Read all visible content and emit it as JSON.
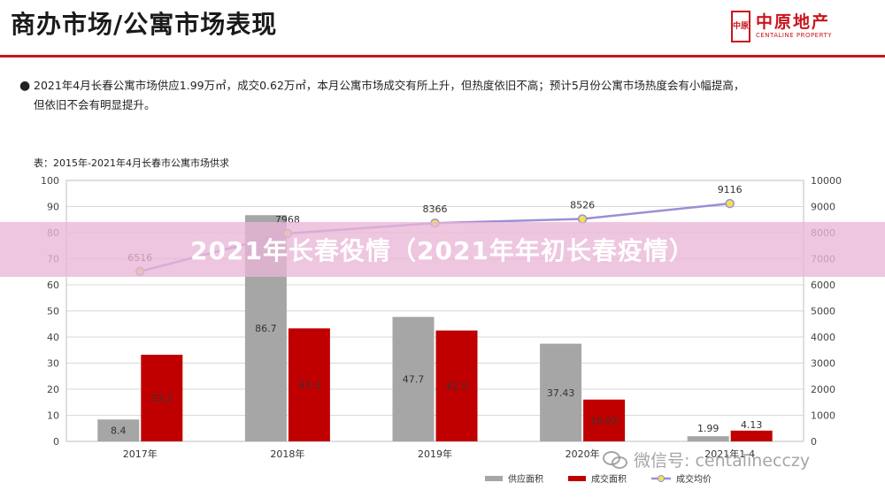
{
  "header": {
    "title": "商办市场/公寓市场表现",
    "logo_seal": "中原",
    "logo_cn": "中原地产",
    "logo_en": "CENTALINE PROPERTY"
  },
  "summary": {
    "line1": "2021年4月长春公寓市场供应1.99万㎡，成交0.62万㎡，本月公寓市场成交有所上升，但热度依旧不高；预计5月份公寓市场热度会有小幅提高，",
    "line2": "但依旧不会有明显提升。"
  },
  "table_caption": "表：2015年-2021年4月长春市公寓市场供求",
  "banner_text": "2021年长春役情（2021年年初长春疫情）",
  "watermark": "微信号: centalinecczy",
  "colors": {
    "supply": "#a6a6a6",
    "deal": "#c00000",
    "price_line": "#9b8fd6",
    "price_marker": "#f2e24f",
    "header_red": "#c9151e"
  },
  "chart_data": {
    "type": "bar",
    "categories": [
      "2017年",
      "2018年",
      "2019年",
      "2020年",
      "2021年1-4"
    ],
    "series": [
      {
        "name": "供应面积",
        "type": "bar",
        "axis": "left",
        "values": [
          8.4,
          86.7,
          47.7,
          37.43,
          1.99
        ],
        "labels": [
          "8.4",
          "86.7",
          "47.7",
          "37.43",
          "1.99"
        ]
      },
      {
        "name": "成交面积",
        "type": "bar",
        "axis": "left",
        "values": [
          33.2,
          43.3,
          42.5,
          16.02,
          4.13
        ],
        "labels": [
          "33.2",
          "43.3",
          "42.5",
          "16.02",
          "4.13"
        ]
      },
      {
        "name": "成交均价",
        "type": "line",
        "axis": "right",
        "values": [
          6516,
          7968,
          8366,
          8526,
          9116
        ],
        "labels": [
          "6516",
          "7968",
          "8366",
          "8526",
          "9116"
        ]
      }
    ],
    "ylim_left": [
      0,
      100
    ],
    "ylim_right": [
      0,
      10000
    ],
    "yticks_left": [
      "0",
      "10",
      "20",
      "30",
      "40",
      "50",
      "60",
      "70",
      "80",
      "90",
      "100"
    ],
    "yticks_right": [
      "0",
      "1000",
      "2000",
      "3000",
      "4000",
      "5000",
      "6000",
      "7000",
      "8000",
      "9000",
      "10000"
    ],
    "grid": true,
    "legend_position": "bottom"
  }
}
